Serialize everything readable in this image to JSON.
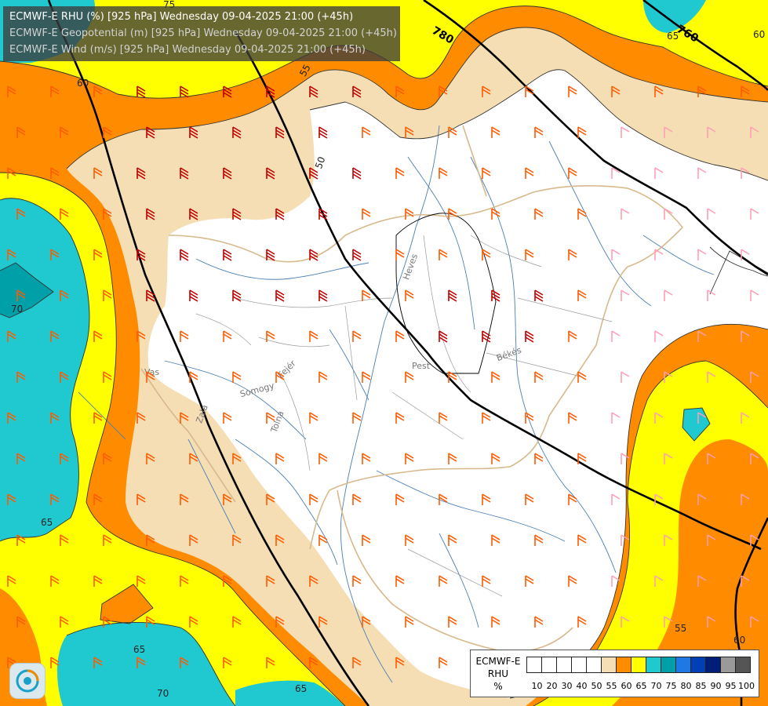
{
  "header": {
    "line1": "ECMWF-E RHU (%) [925 hPa] Wednesday 09-04-2025 21:00 (+45h)",
    "line2": "ECMWF-E Geopotential (m) [925 hPa] Wednesday 09-04-2025 21:00 (+45h)",
    "line3": "ECMWF-E Wind (m/s) [925 hPa] Wednesday 09-04-2025 21:00 (+45h)"
  },
  "legend": {
    "model": "ECMWF-E",
    "param": "RHU",
    "unit": "%",
    "levels": [
      "10",
      "20",
      "30",
      "40",
      "50",
      "55",
      "60",
      "65",
      "70",
      "75",
      "80",
      "85",
      "90",
      "95",
      "100"
    ],
    "colors": [
      "#ffffff",
      "#ffffff",
      "#ffffff",
      "#ffffff",
      "#ffffff",
      "#f5deb3",
      "#ff8c00",
      "#ffff00",
      "#20c8d0",
      "#00a0a8",
      "#1e78e6",
      "#0040b4",
      "#001e78",
      "#9a9a9a",
      "#555555"
    ]
  },
  "palette": {
    "rh_below_55": "#ffffff",
    "rh_55": "#f5deb3",
    "rh_60": "#ff8c00",
    "rh_65": "#ffff00",
    "rh_70": "#20c8d0",
    "rh_75": "#00a0a8",
    "rh_80": "#1e78e6",
    "geopotential_line": "#000000",
    "rivers": "#4a7fb5",
    "borders": "#d7b98c",
    "wind_strong": "#c00000",
    "wind_moderate": "#ff5a00",
    "wind_light": "#ff9eb4"
  },
  "contour_labels": {
    "rh": [
      "75",
      "60",
      "55",
      "50",
      "70",
      "65",
      "65",
      "70",
      "65",
      "55",
      "60",
      "65",
      "60"
    ],
    "geopotential": [
      "780",
      "760"
    ]
  },
  "places": [
    "Heves",
    "Pest",
    "Békés",
    "Vas",
    "Somogy",
    "Fejér",
    "Tolna",
    "Zala"
  ],
  "logo": "weather-service-logo"
}
